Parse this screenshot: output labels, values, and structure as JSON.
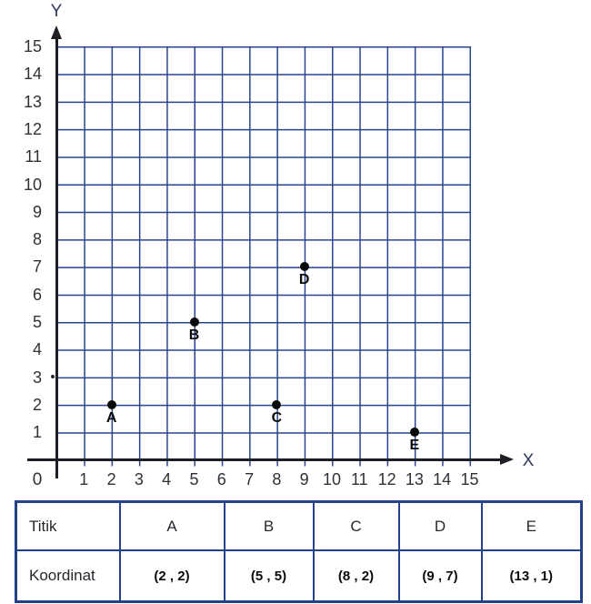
{
  "colors": {
    "grid_line": "#2a4590",
    "axis_line": "#1e1f24",
    "table_border": "#24418c",
    "tick_text": "#303138",
    "axis_letter_text": "#2f3b5e",
    "point_color": "#0a0a0a"
  },
  "chart": {
    "y_axis_label": "Y",
    "x_axis_label": "X",
    "origin_label": "0",
    "x_tick_labels": [
      "1",
      "2",
      "3",
      "4",
      "5",
      "6",
      "7",
      "8",
      "9",
      "10",
      "11",
      "12",
      "13",
      "14",
      "15"
    ],
    "y_tick_labels": [
      "1",
      "2",
      "3",
      "4",
      "5",
      "6",
      "7",
      "8",
      "9",
      "10",
      "11",
      "12",
      "13",
      "14",
      "15"
    ]
  },
  "chart_data": {
    "type": "scatter",
    "points": [
      {
        "label": "A",
        "x": 2,
        "y": 2
      },
      {
        "label": "B",
        "x": 5,
        "y": 5
      },
      {
        "label": "C",
        "x": 8,
        "y": 2
      },
      {
        "label": "D",
        "x": 9,
        "y": 7
      },
      {
        "label": "E",
        "x": 13,
        "y": 1
      }
    ],
    "xlim": [
      0,
      15
    ],
    "ylim": [
      0,
      15
    ],
    "tick_step": 1,
    "grid": true,
    "legend": false,
    "xlabel": "X",
    "ylabel": "Y",
    "title": ""
  },
  "table": {
    "row1": [
      "Titik",
      "A",
      "B",
      "C",
      "D",
      "E"
    ],
    "row2": [
      "Koordinat",
      "(2 , 2)",
      "(5 , 5)",
      "(8 , 2)",
      "(9 , 7)",
      "(13 , 1)"
    ]
  }
}
